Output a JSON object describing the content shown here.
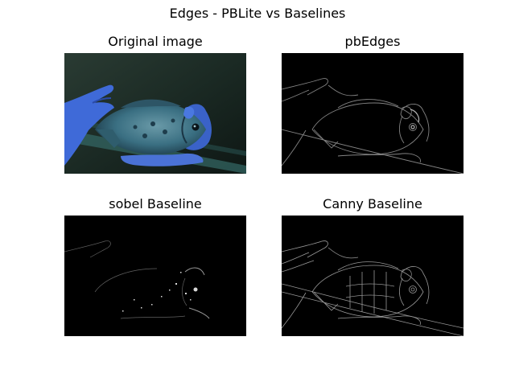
{
  "figure": {
    "suptitle": "Edges - PBLite vs Baselines"
  },
  "panels": [
    {
      "title": "Original image",
      "content": "photo of a blue fish held in two blue-tinted hands"
    },
    {
      "title": "pbEdges",
      "content": "edge map"
    },
    {
      "title": "sobel Baseline",
      "content": "edge map"
    },
    {
      "title": "Canny Baseline",
      "content": "edge map"
    }
  ],
  "colors": {
    "background": "#ffffff",
    "panel_background": "#000000",
    "photo_backdrop": "#1e2f28",
    "hand_blue": "#3f6ad8",
    "fish_teal": "#3a6f82",
    "edge_bright": "#e0e0e0",
    "edge_dim": "#8a8a8a"
  }
}
